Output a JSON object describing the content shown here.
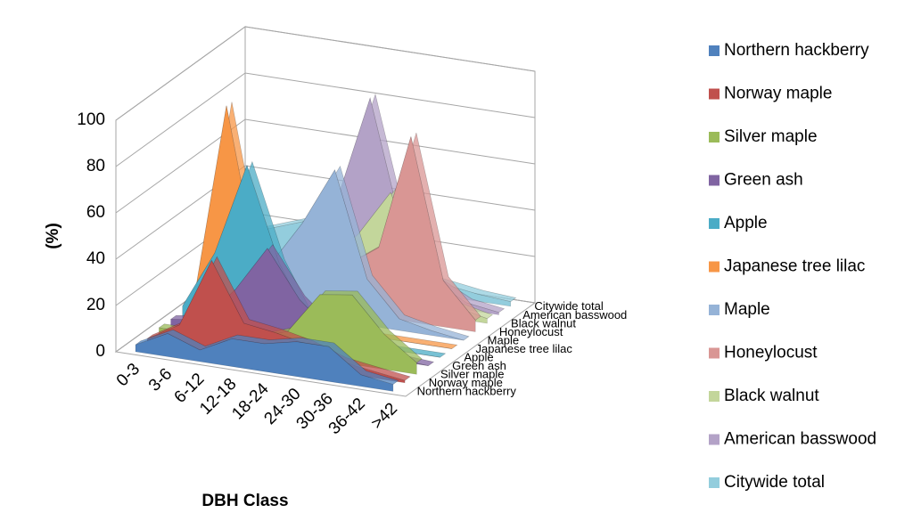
{
  "chart_data": {
    "type": "area3d",
    "x_label": "DBH Class",
    "y_label": "(%)",
    "categories": [
      "0-3",
      "3-6",
      "6-12",
      "12-18",
      "18-24",
      "24-30",
      "30-36",
      "36-42",
      ">42"
    ],
    "ylim": [
      0,
      100
    ],
    "yticks": [
      0,
      20,
      40,
      60,
      80,
      100
    ],
    "grid": true,
    "legend": "right",
    "series": [
      {
        "name": "Northern hackberry",
        "color": "#4f81bd",
        "values": [
          3,
          10,
          5,
          12,
          12,
          15,
          15,
          5,
          3
        ]
      },
      {
        "name": "Norway maple",
        "color": "#c0504d",
        "values": [
          2,
          10,
          40,
          15,
          13,
          10,
          5,
          3,
          1
        ]
      },
      {
        "name": "Silver maple",
        "color": "#9bbb59",
        "values": [
          3,
          3,
          5,
          5,
          10,
          28,
          30,
          15,
          5
        ]
      },
      {
        "name": "Green ash",
        "color": "#8064a2",
        "values": [
          3,
          5,
          20,
          40,
          20,
          8,
          3,
          1,
          0
        ]
      },
      {
        "name": "Apple",
        "color": "#4bacc6",
        "values": [
          5,
          30,
          70,
          30,
          5,
          2,
          0,
          0,
          0
        ]
      },
      {
        "name": "Japanese tree lilac",
        "color": "#f79646",
        "values": [
          5,
          90,
          20,
          3,
          0,
          0,
          0,
          0,
          0
        ]
      },
      {
        "name": "Maple",
        "color": "#95b3d7",
        "values": [
          5,
          10,
          20,
          40,
          65,
          20,
          5,
          2,
          0
        ]
      },
      {
        "name": "Honeylocust",
        "color": "#d99694",
        "values": [
          5,
          5,
          10,
          15,
          20,
          30,
          80,
          20,
          5
        ]
      },
      {
        "name": "Black walnut",
        "color": "#c3d69b",
        "values": [
          3,
          5,
          10,
          15,
          30,
          50,
          20,
          5,
          2
        ]
      },
      {
        "name": "American basswood",
        "color": "#b3a2c7",
        "values": [
          5,
          10,
          20,
          40,
          85,
          30,
          10,
          3,
          1
        ]
      },
      {
        "name": "Citywide total",
        "color": "#93cddd",
        "values": [
          15,
          20,
          25,
          15,
          10,
          7,
          5,
          3,
          2
        ]
      }
    ]
  }
}
